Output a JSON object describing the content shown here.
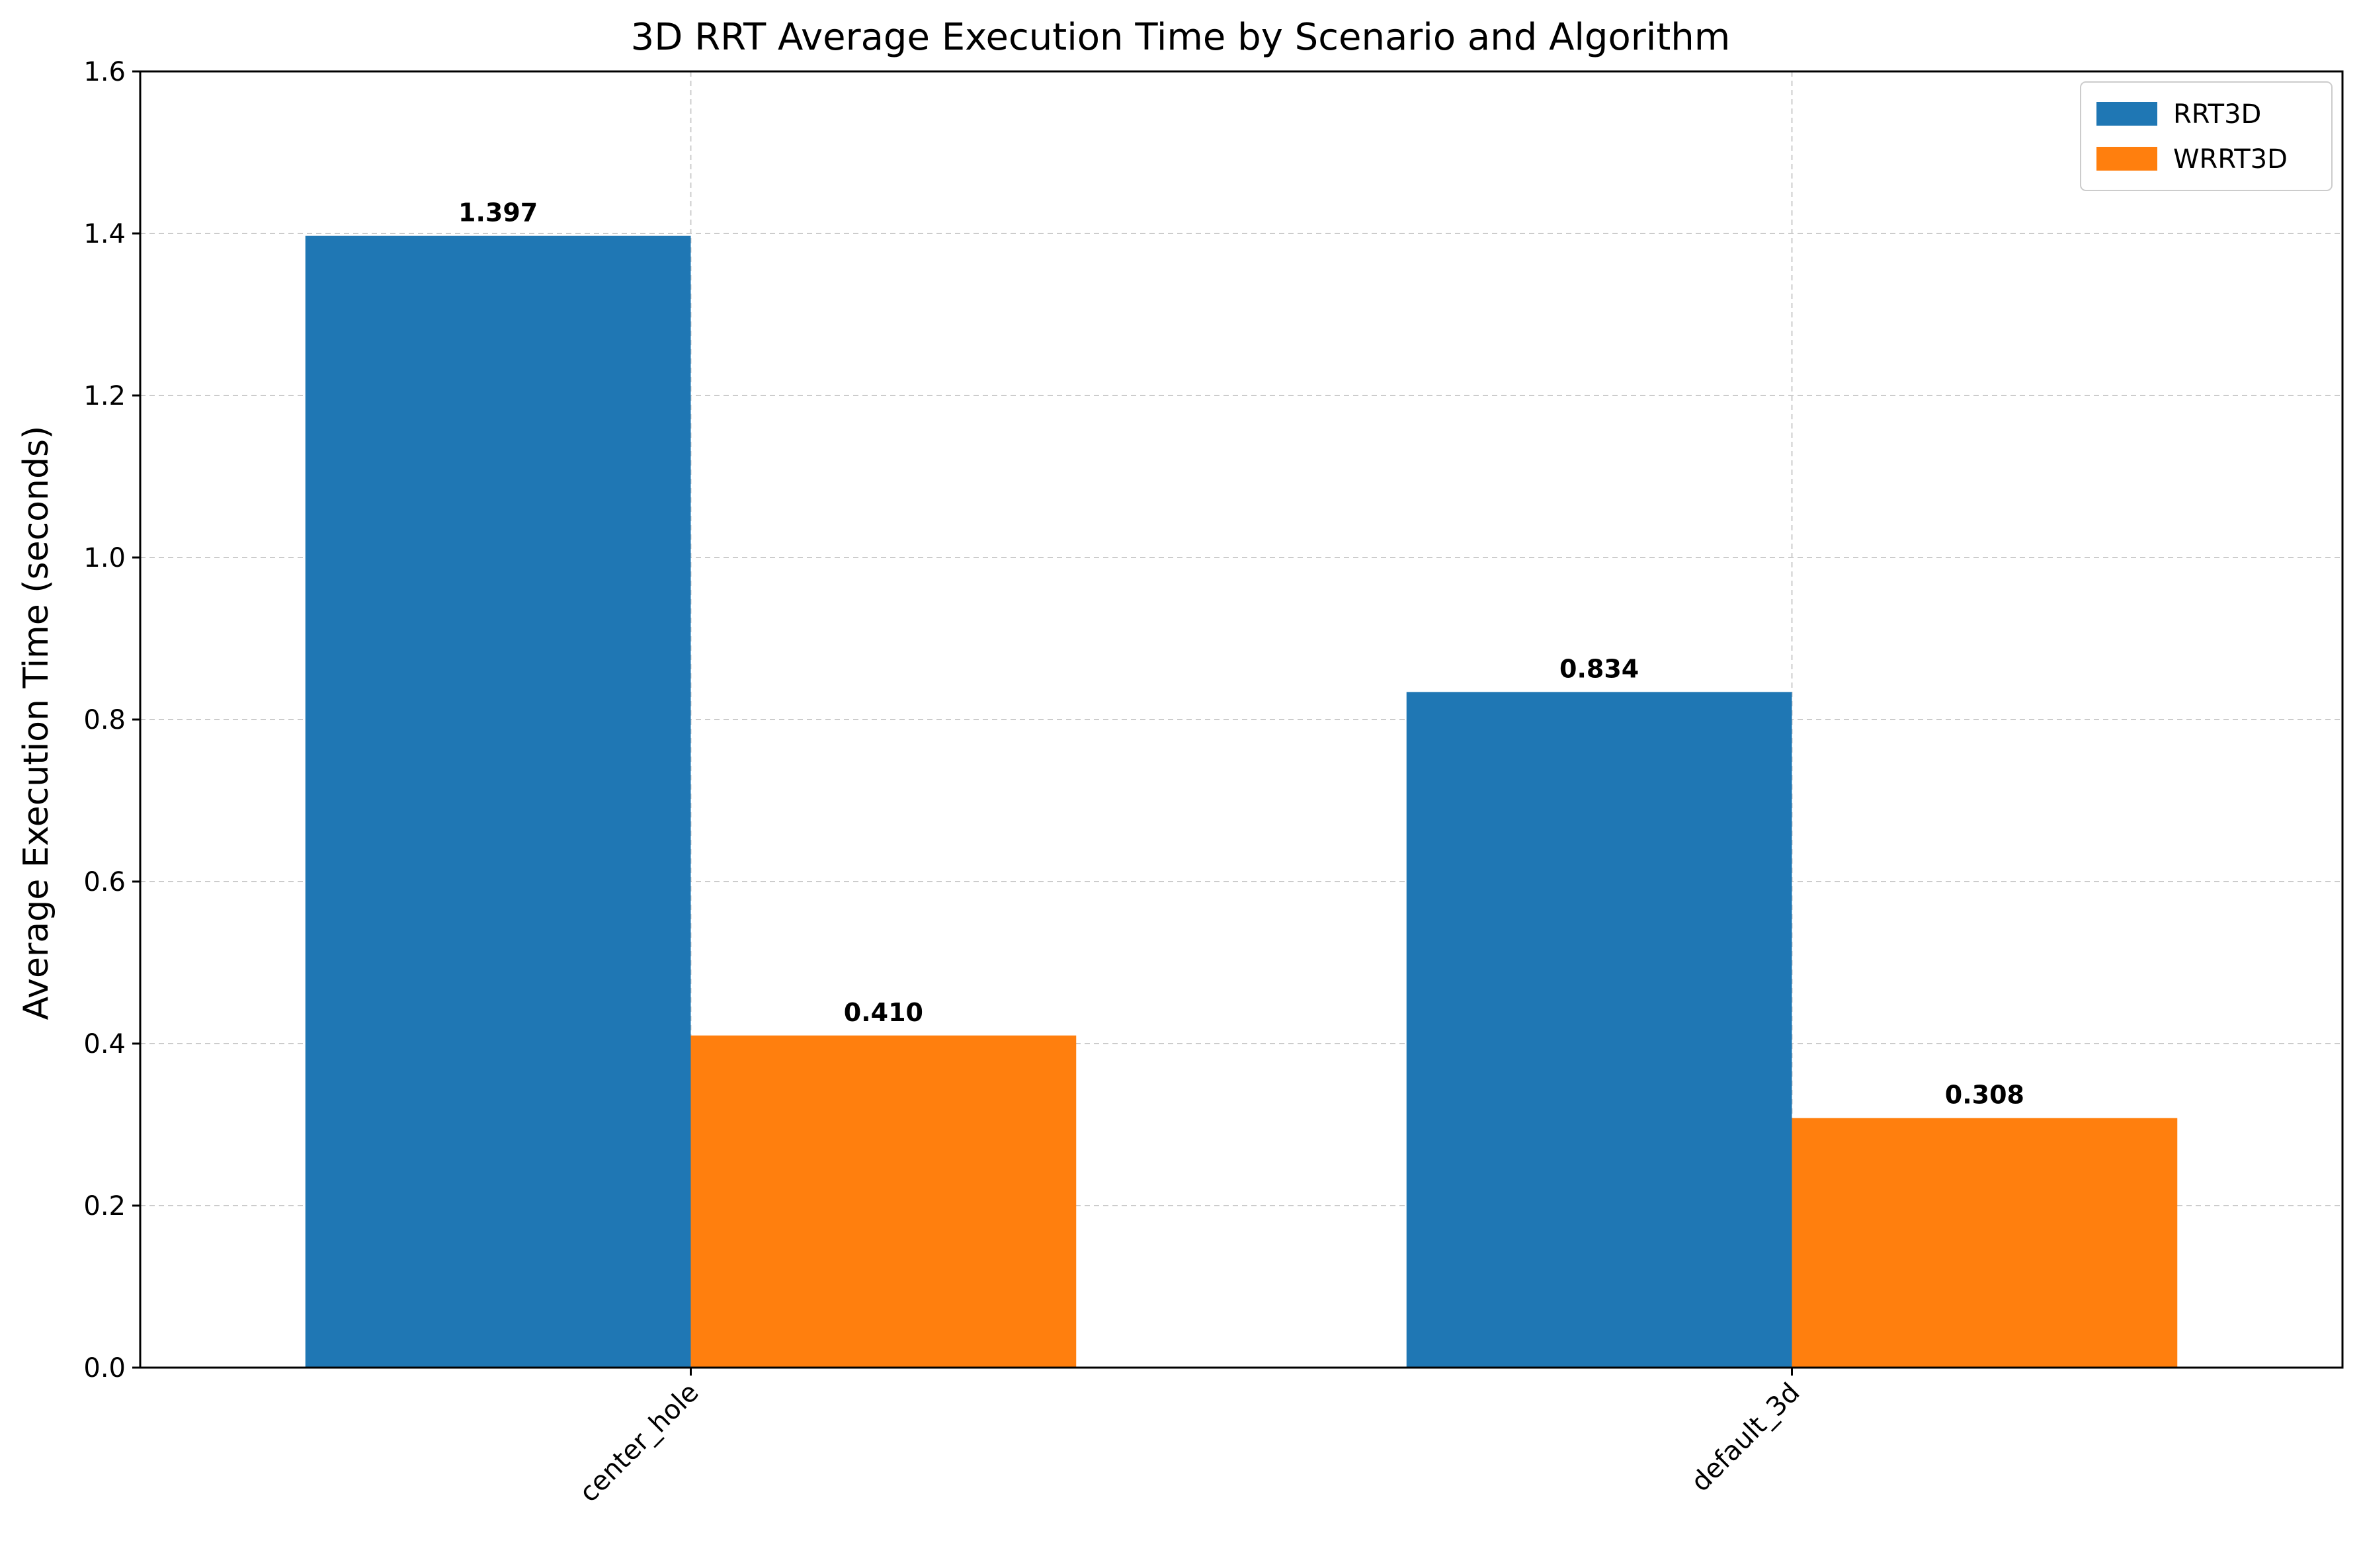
{
  "chart_data": {
    "type": "bar",
    "title": "3D RRT Average Execution Time by Scenario and Algorithm",
    "xlabel": "",
    "ylabel": "Average Execution Time (seconds)",
    "categories": [
      "center_hole",
      "default_3d"
    ],
    "series": [
      {
        "name": "RRT3D",
        "values": [
          1.397,
          0.834
        ],
        "labels": [
          "1.397",
          "0.834"
        ],
        "color": "#1f77b4"
      },
      {
        "name": "WRRT3D",
        "values": [
          0.41,
          0.308
        ],
        "labels": [
          "0.410",
          "0.308"
        ],
        "color": "#ff7f0e"
      }
    ],
    "ylim": [
      0,
      1.6
    ],
    "yticks": [
      0.0,
      0.2,
      0.4,
      0.6,
      0.8,
      1.0,
      1.2,
      1.4,
      1.6
    ],
    "ytick_labels": [
      "0.0",
      "0.2",
      "0.4",
      "0.6",
      "0.8",
      "1.0",
      "1.2",
      "1.4",
      "1.6"
    ],
    "grid": true,
    "legend_position": "top-right",
    "xtick_rotation": "45"
  }
}
